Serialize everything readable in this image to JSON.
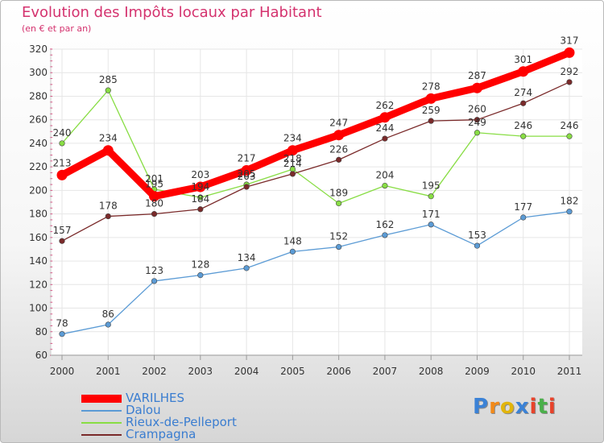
{
  "title": "Evolution des Impôts locaux par Habitant",
  "subtitle": "(en € et par an)",
  "logo": {
    "letters": [
      "P",
      "r",
      "o",
      "x",
      "i",
      "t",
      "i"
    ],
    "colors": [
      "#3b82d6",
      "#f28a1a",
      "#e2b50c",
      "#3b82d6",
      "#e8432b",
      "#4bb04b",
      "#e8432b"
    ]
  },
  "chart_data": {
    "type": "line",
    "x": [
      "2000",
      "2001",
      "2002",
      "2003",
      "2004",
      "2005",
      "2006",
      "2007",
      "2008",
      "2009",
      "2010",
      "2011"
    ],
    "ylim": [
      60,
      320
    ],
    "yticks": [
      60,
      80,
      100,
      120,
      140,
      160,
      180,
      200,
      220,
      240,
      260,
      280,
      300,
      320
    ],
    "grid": true,
    "legend": "bottom-left",
    "series": [
      {
        "name": "VARILHES",
        "color": "#ff0000",
        "values": [
          213,
          234,
          195,
          203,
          217,
          234,
          247,
          262,
          278,
          287,
          301,
          317
        ]
      },
      {
        "name": "Dalou",
        "color": "#5b9bd5",
        "values": [
          78,
          86,
          123,
          128,
          134,
          148,
          152,
          162,
          171,
          153,
          177,
          182
        ]
      },
      {
        "name": "Rieux-de-Pelleport",
        "color": "#88dd44",
        "values": [
          240,
          285,
          201,
          194,
          205,
          218,
          189,
          204,
          195,
          249,
          246,
          246
        ]
      },
      {
        "name": "Crampagna",
        "color": "#7a2a2a",
        "values": [
          157,
          178,
          180,
          184,
          203,
          214,
          226,
          244,
          259,
          260,
          274,
          292
        ]
      }
    ]
  }
}
